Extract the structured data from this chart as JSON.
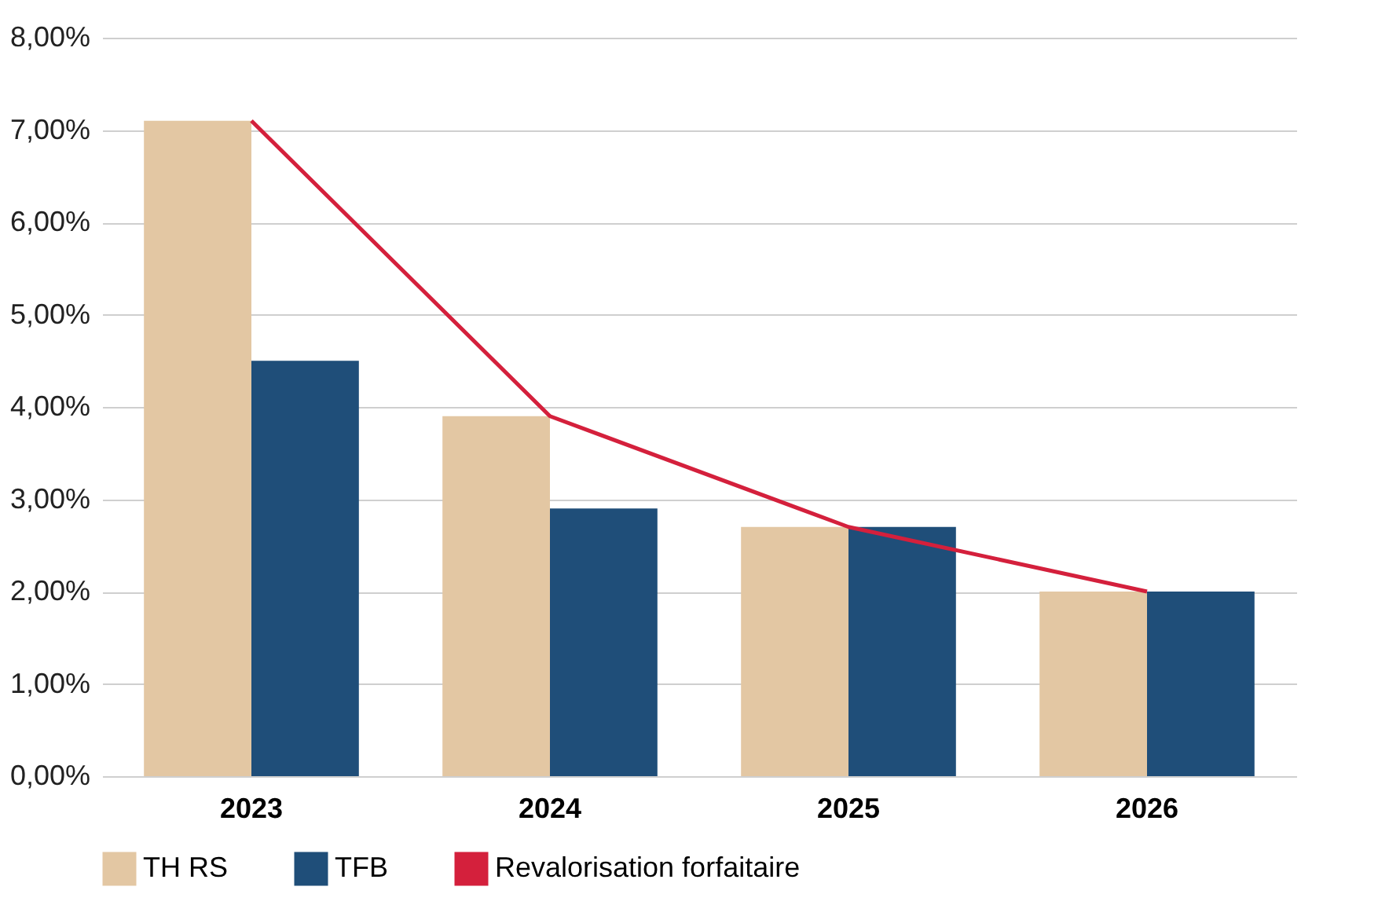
{
  "chart_data": {
    "type": "bar",
    "categories": [
      "2023",
      "2024",
      "2025",
      "2026"
    ],
    "series": [
      {
        "name": "TH RS",
        "color": "#e3c7a3",
        "values": [
          7.1,
          3.9,
          2.7,
          2.0
        ]
      },
      {
        "name": "TFB",
        "color": "#1f4e79",
        "values": [
          4.5,
          2.9,
          2.7,
          2.0
        ]
      },
      {
        "name": "Revalorisation forfaitaire",
        "type": "line",
        "color": "#d4203c",
        "values": [
          7.1,
          3.9,
          2.7,
          2.0
        ]
      }
    ],
    "ylim": [
      0,
      8
    ],
    "yticks": [
      {
        "value": 0,
        "label": "0,00%"
      },
      {
        "value": 1,
        "label": "1,00%"
      },
      {
        "value": 2,
        "label": "2,00%"
      },
      {
        "value": 3,
        "label": "3,00%"
      },
      {
        "value": 4,
        "label": "4,00%"
      },
      {
        "value": 5,
        "label": "5,00%"
      },
      {
        "value": 6,
        "label": "6,00%"
      },
      {
        "value": 7,
        "label": "7,00%"
      },
      {
        "value": 8,
        "label": "8,00%"
      }
    ],
    "grid": "y",
    "legend": "bottom"
  }
}
